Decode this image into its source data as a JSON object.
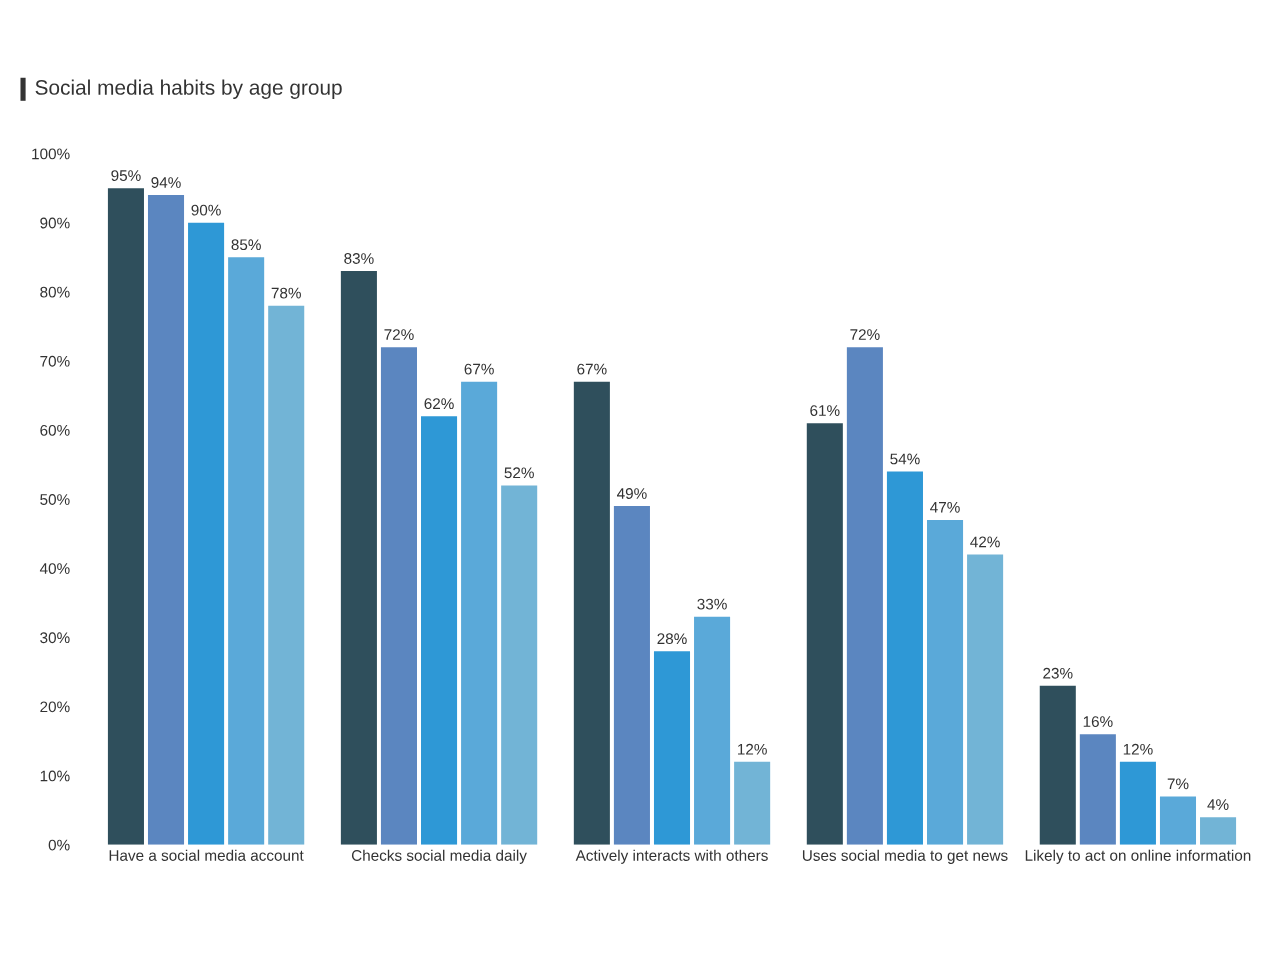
{
  "chart_data": {
    "type": "bar",
    "title": "Social media habits by age group",
    "categories": [
      "Have a social media account",
      "Checks social media daily",
      "Actively interacts with others",
      "Uses social media to get news",
      "Likely to act on online information"
    ],
    "series": [
      {
        "color": "#2f4f5c",
        "values": [
          95,
          83,
          67,
          61,
          23
        ],
        "value_labels": [
          "95%",
          "83%",
          "67%",
          "61%",
          "23%"
        ]
      },
      {
        "color": "#5b86c0",
        "values": [
          94,
          72,
          49,
          72,
          16
        ],
        "value_labels": [
          "94%",
          "72%",
          "49%",
          "72%",
          "16%"
        ]
      },
      {
        "color": "#2e98d6",
        "values": [
          90,
          62,
          28,
          54,
          12
        ],
        "value_labels": [
          "90%",
          "62%",
          "28%",
          "54%",
          "12%"
        ]
      },
      {
        "color": "#5aa9d9",
        "values": [
          85,
          67,
          33,
          47,
          7
        ],
        "value_labels": [
          "85%",
          "67%",
          "33%",
          "47%",
          "7%"
        ]
      },
      {
        "color": "#72b4d6",
        "values": [
          78,
          52,
          12,
          42,
          4
        ],
        "value_labels": [
          "78%",
          "52%",
          "12%",
          "42%",
          "4%"
        ]
      }
    ],
    "ylim": [
      0,
      100
    ],
    "yticks": [
      {
        "value": 0,
        "label": "0%"
      },
      {
        "value": 10,
        "label": "10%"
      },
      {
        "value": 20,
        "label": "20%"
      },
      {
        "value": 30,
        "label": "30%"
      },
      {
        "value": 40,
        "label": "40%"
      },
      {
        "value": 50,
        "label": "50%"
      },
      {
        "value": 60,
        "label": "60%"
      },
      {
        "value": 70,
        "label": "70%"
      },
      {
        "value": 80,
        "label": "80%"
      },
      {
        "value": 90,
        "label": "90%"
      },
      {
        "value": 100,
        "label": "100%"
      }
    ],
    "grid": false
  }
}
